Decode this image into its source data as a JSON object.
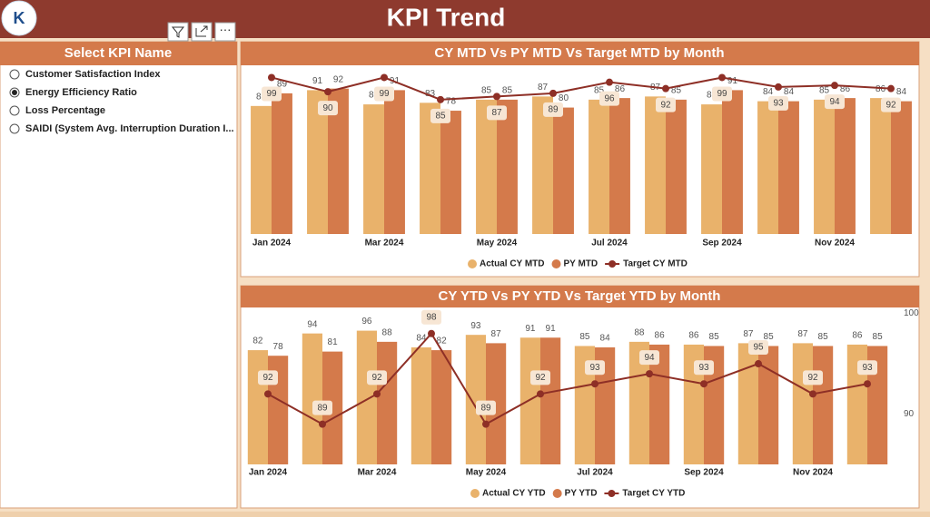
{
  "header": {
    "title": "KPI Trend"
  },
  "slicer": {
    "title": "Select KPI Name",
    "options": [
      "Customer Satisfaction Index",
      "Energy Efficiency Ratio",
      "Loss Percentage",
      "SAIDI (System Avg. Interruption Duration I..."
    ],
    "selected": 1
  },
  "chart_data": [
    {
      "type": "combo",
      "title": "CY MTD Vs PY MTD Vs Target MTD by Month",
      "categories": [
        "Jan 2024",
        null,
        "Mar 2024",
        null,
        "May 2024",
        null,
        "Jul 2024",
        null,
        "Sep 2024",
        null,
        "Nov 2024",
        null
      ],
      "ylim": [
        0,
        105
      ],
      "series": [
        {
          "name": "Actual CY MTD",
          "type": "bar",
          "color": "#e9b26b",
          "values": [
            81,
            91,
            82,
            83,
            85,
            87,
            85,
            87,
            82,
            84,
            85,
            86
          ]
        },
        {
          "name": "PY MTD",
          "type": "bar",
          "color": "#d47a4b",
          "values": [
            89,
            92,
            91,
            78,
            85,
            80,
            86,
            85,
            91,
            84,
            86,
            84
          ]
        },
        {
          "name": "Target CY MTD",
          "type": "line",
          "color": "#8e2f26",
          "values": [
            99,
            90,
            99,
            85,
            87,
            89,
            96,
            92,
            99,
            93,
            94,
            92
          ]
        }
      ]
    },
    {
      "type": "combo",
      "title": "CY YTD Vs PY YTD Vs Target YTD by Month",
      "categories": [
        "Jan 2024",
        null,
        "Mar 2024",
        null,
        "May 2024",
        null,
        "Jul 2024",
        null,
        "Sep 2024",
        null,
        "Nov 2024",
        null
      ],
      "ylim": [
        0,
        112
      ],
      "y2lim": [
        85,
        100.5
      ],
      "y2ticks": [
        90,
        100
      ],
      "series": [
        {
          "name": "Actual CY YTD",
          "type": "bar",
          "color": "#e9b26b",
          "values": [
            82,
            94,
            96,
            84,
            93,
            91,
            85,
            88,
            86,
            87,
            87,
            86
          ]
        },
        {
          "name": "PY YTD",
          "type": "bar",
          "color": "#d47a4b",
          "values": [
            78,
            81,
            88,
            82,
            87,
            91,
            84,
            86,
            85,
            85,
            85,
            85
          ]
        },
        {
          "name": "Target CY YTD",
          "type": "line",
          "axis": "y2",
          "color": "#8e2f26",
          "values": [
            92,
            89,
            92,
            98,
            89,
            92,
            93,
            94,
            93,
            95,
            92,
            93
          ]
        }
      ]
    }
  ]
}
